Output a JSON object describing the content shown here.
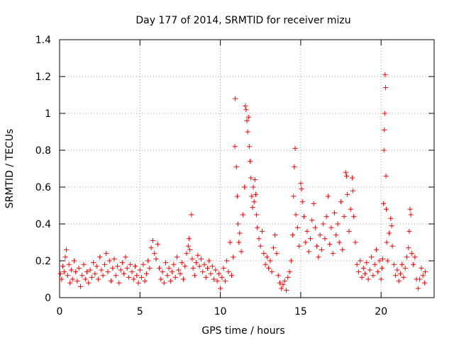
{
  "chart_data": {
    "type": "scatter",
    "title": "Day 177 of 2014, SRMTID for receiver mizu",
    "xlabel": "GPS time / hours",
    "ylabel": "SRMTID / TECUs",
    "xlim": [
      0,
      23.3
    ],
    "ylim": [
      0,
      1.4
    ],
    "x_ticks": [
      0,
      5,
      10,
      15,
      20
    ],
    "y_ticks": [
      0,
      0.2,
      0.4,
      0.6,
      0.8,
      1,
      1.2,
      1.4
    ],
    "x_tick_labels": [
      "0",
      "5",
      "10",
      "15",
      "20"
    ],
    "y_tick_labels": [
      "0",
      "0.2",
      "0.4",
      "0.6",
      "0.8",
      "1",
      "1.2",
      "1.4"
    ],
    "grid": true,
    "marker": "+",
    "series": [
      {
        "name": "SRMTID",
        "color": "#ff0000",
        "points": [
          [
            0.05,
            0.13
          ],
          [
            0.12,
            0.1
          ],
          [
            0.2,
            0.17
          ],
          [
            0.28,
            0.14
          ],
          [
            0.35,
            0.22
          ],
          [
            0.42,
            0.26
          ],
          [
            0.5,
            0.12
          ],
          [
            0.58,
            0.18
          ],
          [
            0.65,
            0.08
          ],
          [
            0.72,
            0.15
          ],
          [
            0.8,
            0.1
          ],
          [
            0.9,
            0.2
          ],
          [
            1.0,
            0.14
          ],
          [
            1.1,
            0.09
          ],
          [
            1.2,
            0.16
          ],
          [
            1.3,
            0.06
          ],
          [
            1.4,
            0.12
          ],
          [
            1.5,
            0.18
          ],
          [
            1.6,
            0.1
          ],
          [
            1.7,
            0.14
          ],
          [
            1.8,
            0.08
          ],
          [
            1.9,
            0.15
          ],
          [
            2.0,
            0.11
          ],
          [
            2.1,
            0.19
          ],
          [
            2.2,
            0.13
          ],
          [
            2.3,
            0.17
          ],
          [
            2.4,
            0.1
          ],
          [
            2.5,
            0.22
          ],
          [
            2.6,
            0.15
          ],
          [
            2.7,
            0.12
          ],
          [
            2.8,
            0.18
          ],
          [
            2.9,
            0.24
          ],
          [
            3.0,
            0.14
          ],
          [
            3.1,
            0.2
          ],
          [
            3.2,
            0.09
          ],
          [
            3.3,
            0.16
          ],
          [
            3.4,
            0.21
          ],
          [
            3.5,
            0.12
          ],
          [
            3.6,
            0.17
          ],
          [
            3.7,
            0.08
          ],
          [
            3.8,
            0.15
          ],
          [
            3.9,
            0.19
          ],
          [
            4.0,
            0.13
          ],
          [
            4.1,
            0.22
          ],
          [
            4.2,
            0.16
          ],
          [
            4.3,
            0.11
          ],
          [
            4.4,
            0.18
          ],
          [
            4.5,
            0.14
          ],
          [
            4.6,
            0.1
          ],
          [
            4.7,
            0.17
          ],
          [
            4.8,
            0.12
          ],
          [
            4.9,
            0.08
          ],
          [
            5.0,
            0.15
          ],
          [
            5.1,
            0.11
          ],
          [
            5.2,
            0.18
          ],
          [
            5.3,
            0.09
          ],
          [
            5.4,
            0.13
          ],
          [
            5.5,
            0.2
          ],
          [
            5.6,
            0.16
          ],
          [
            5.7,
            0.27
          ],
          [
            5.8,
            0.31
          ],
          [
            5.9,
            0.24
          ],
          [
            6.0,
            0.21
          ],
          [
            6.1,
            0.29
          ],
          [
            6.2,
            0.16
          ],
          [
            6.3,
            0.1
          ],
          [
            6.4,
            0.14
          ],
          [
            6.5,
            0.08
          ],
          [
            6.6,
            0.19
          ],
          [
            6.7,
            0.12
          ],
          [
            6.8,
            0.16
          ],
          [
            6.9,
            0.09
          ],
          [
            7.0,
            0.14
          ],
          [
            7.1,
            0.18
          ],
          [
            7.2,
            0.11
          ],
          [
            7.3,
            0.22
          ],
          [
            7.4,
            0.15
          ],
          [
            7.5,
            0.13
          ],
          [
            7.6,
            0.19
          ],
          [
            7.7,
            0.1
          ],
          [
            7.8,
            0.17
          ],
          [
            7.9,
            0.24
          ],
          [
            8.0,
            0.28
          ],
          [
            8.05,
            0.32
          ],
          [
            8.1,
            0.26
          ],
          [
            8.2,
            0.45
          ],
          [
            8.25,
            0.21
          ],
          [
            8.3,
            0.16
          ],
          [
            8.4,
            0.12
          ],
          [
            8.5,
            0.19
          ],
          [
            8.6,
            0.23
          ],
          [
            8.7,
            0.17
          ],
          [
            8.8,
            0.21
          ],
          [
            8.9,
            0.14
          ],
          [
            9.0,
            0.18
          ],
          [
            9.1,
            0.11
          ],
          [
            9.2,
            0.16
          ],
          [
            9.3,
            0.2
          ],
          [
            9.4,
            0.13
          ],
          [
            9.5,
            0.17
          ],
          [
            9.6,
            0.1
          ],
          [
            9.7,
            0.15
          ],
          [
            9.8,
            0.09
          ],
          [
            9.9,
            0.13
          ],
          [
            10.0,
            0.05
          ],
          [
            10.1,
            0.11
          ],
          [
            10.2,
            0.16
          ],
          [
            10.3,
            0.09
          ],
          [
            10.4,
            0.2
          ],
          [
            10.5,
            0.14
          ],
          [
            10.6,
            0.3
          ],
          [
            10.7,
            0.12
          ],
          [
            10.8,
            0.22
          ],
          [
            10.9,
            0.82
          ],
          [
            10.92,
            1.08
          ],
          [
            11.0,
            0.71
          ],
          [
            11.05,
            0.55
          ],
          [
            11.1,
            0.4
          ],
          [
            11.15,
            0.3
          ],
          [
            11.2,
            0.35
          ],
          [
            11.3,
            0.25
          ],
          [
            11.4,
            0.45
          ],
          [
            11.5,
            0.6
          ],
          [
            11.55,
            1.04
          ],
          [
            11.6,
            1.02
          ],
          [
            11.65,
            0.96
          ],
          [
            11.7,
            0.9
          ],
          [
            11.75,
            0.98
          ],
          [
            11.8,
            0.82
          ],
          [
            11.85,
            0.74
          ],
          [
            11.9,
            0.65
          ],
          [
            11.95,
            0.55
          ],
          [
            12.0,
            0.49
          ],
          [
            12.05,
            0.6
          ],
          [
            12.1,
            0.52
          ],
          [
            12.15,
            0.64
          ],
          [
            12.2,
            0.56
          ],
          [
            12.25,
            0.45
          ],
          [
            12.3,
            0.38
          ],
          [
            12.4,
            0.32
          ],
          [
            12.5,
            0.28
          ],
          [
            12.6,
            0.36
          ],
          [
            12.7,
            0.24
          ],
          [
            12.8,
            0.18
          ],
          [
            12.9,
            0.22
          ],
          [
            13.0,
            0.16
          ],
          [
            13.1,
            0.2
          ],
          [
            13.2,
            0.14
          ],
          [
            13.3,
            0.27
          ],
          [
            13.4,
            0.34
          ],
          [
            13.5,
            0.24
          ],
          [
            13.6,
            0.12
          ],
          [
            13.7,
            0.08
          ],
          [
            13.8,
            0.05
          ],
          [
            13.9,
            0.07
          ],
          [
            14.0,
            0.09
          ],
          [
            14.1,
            0.04
          ],
          [
            14.2,
            0.11
          ],
          [
            14.3,
            0.14
          ],
          [
            14.4,
            0.2
          ],
          [
            14.5,
            0.34
          ],
          [
            14.55,
            0.55
          ],
          [
            14.6,
            0.71
          ],
          [
            14.65,
            0.81
          ],
          [
            14.7,
            0.45
          ],
          [
            14.8,
            0.38
          ],
          [
            14.9,
            0.28
          ],
          [
            15.0,
            0.62
          ],
          [
            15.05,
            0.59
          ],
          [
            15.1,
            0.52
          ],
          [
            15.2,
            0.44
          ],
          [
            15.3,
            0.3
          ],
          [
            15.4,
            0.36
          ],
          [
            15.5,
            0.25
          ],
          [
            15.6,
            0.32
          ],
          [
            15.7,
            0.42
          ],
          [
            15.8,
            0.51
          ],
          [
            15.9,
            0.38
          ],
          [
            16.0,
            0.28
          ],
          [
            16.1,
            0.22
          ],
          [
            16.2,
            0.34
          ],
          [
            16.3,
            0.26
          ],
          [
            16.4,
            0.4
          ],
          [
            16.5,
            0.32
          ],
          [
            16.6,
            0.44
          ],
          [
            16.7,
            0.55
          ],
          [
            16.8,
            0.29
          ],
          [
            16.9,
            0.38
          ],
          [
            17.0,
            0.24
          ],
          [
            17.1,
            0.46
          ],
          [
            17.2,
            0.34
          ],
          [
            17.3,
            0.4
          ],
          [
            17.4,
            0.3
          ],
          [
            17.5,
            0.52
          ],
          [
            17.6,
            0.26
          ],
          [
            17.7,
            0.44
          ],
          [
            17.8,
            0.68
          ],
          [
            17.85,
            0.66
          ],
          [
            17.9,
            0.56
          ],
          [
            18.0,
            0.36
          ],
          [
            18.1,
            0.48
          ],
          [
            18.2,
            0.65
          ],
          [
            18.25,
            0.58
          ],
          [
            18.3,
            0.44
          ],
          [
            18.4,
            0.3
          ],
          [
            18.5,
            0.18
          ],
          [
            18.6,
            0.14
          ],
          [
            18.7,
            0.2
          ],
          [
            18.8,
            0.11
          ],
          [
            18.9,
            0.16
          ],
          [
            19.0,
            0.13
          ],
          [
            19.1,
            0.19
          ],
          [
            19.2,
            0.1
          ],
          [
            19.3,
            0.15
          ],
          [
            19.4,
            0.22
          ],
          [
            19.5,
            0.12
          ],
          [
            19.6,
            0.18
          ],
          [
            19.7,
            0.26
          ],
          [
            19.8,
            0.14
          ],
          [
            19.9,
            0.2
          ],
          [
            20.0,
            0.1
          ],
          [
            20.05,
            0.16
          ],
          [
            20.1,
            0.21
          ],
          [
            20.15,
            0.51
          ],
          [
            20.18,
            0.8
          ],
          [
            20.2,
            0.91
          ],
          [
            20.22,
            1.0
          ],
          [
            20.25,
            1.21
          ],
          [
            20.28,
            1.14
          ],
          [
            20.3,
            0.66
          ],
          [
            20.32,
            0.48
          ],
          [
            20.35,
            0.3
          ],
          [
            20.4,
            0.2
          ],
          [
            20.5,
            0.35
          ],
          [
            20.6,
            0.43
          ],
          [
            20.65,
            0.39
          ],
          [
            20.7,
            0.28
          ],
          [
            20.8,
            0.18
          ],
          [
            20.9,
            0.12
          ],
          [
            21.0,
            0.15
          ],
          [
            21.1,
            0.09
          ],
          [
            21.2,
            0.13
          ],
          [
            21.3,
            0.18
          ],
          [
            21.4,
            0.11
          ],
          [
            21.5,
            0.16
          ],
          [
            21.6,
            0.22
          ],
          [
            21.7,
            0.27
          ],
          [
            21.75,
            0.36
          ],
          [
            21.8,
            0.48
          ],
          [
            21.85,
            0.45
          ],
          [
            21.9,
            0.24
          ],
          [
            22.0,
            0.18
          ],
          [
            22.1,
            0.22
          ],
          [
            22.2,
            0.1
          ],
          [
            22.3,
            0.05
          ],
          [
            22.4,
            0.1
          ],
          [
            22.5,
            0.16
          ],
          [
            22.6,
            0.12
          ],
          [
            22.7,
            0.08
          ],
          [
            22.75,
            0.14
          ]
        ]
      }
    ]
  }
}
